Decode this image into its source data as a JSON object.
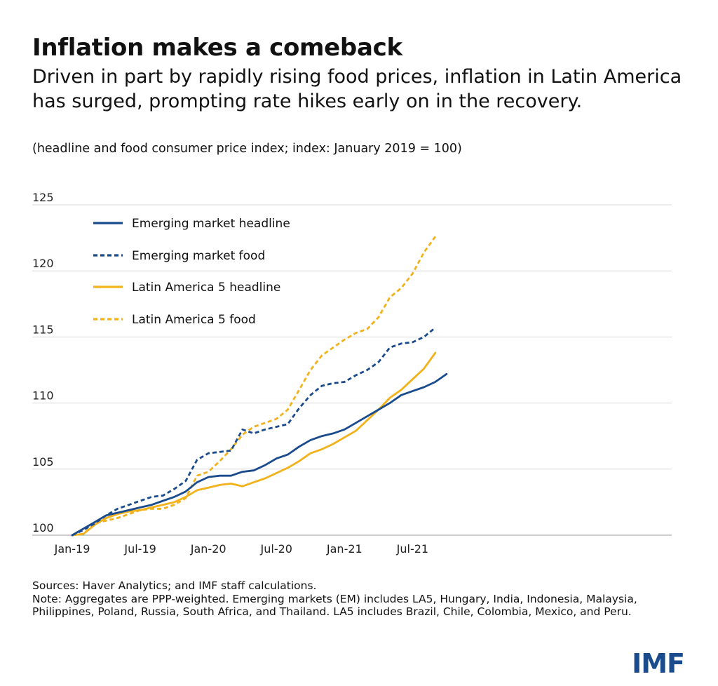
{
  "header": {
    "title": "Inflation makes a comeback",
    "subtitle": "Driven in part by rapidly rising food prices, inflation in Latin America has surged, prompting rate hikes early on in the recovery.",
    "units": "(headline and food consumer price index; index: January 2019 = 100)"
  },
  "chart_data": {
    "type": "line",
    "title": "Inflation makes a comeback",
    "ylim": [
      100,
      125
    ],
    "yticks": [
      100,
      105,
      110,
      115,
      120,
      125
    ],
    "xticks": [
      {
        "index": 0,
        "label": "Jan-19"
      },
      {
        "index": 6,
        "label": "Jul-19"
      },
      {
        "index": 12,
        "label": "Jan-20"
      },
      {
        "index": 18,
        "label": "Jul-20"
      },
      {
        "index": 24,
        "label": "Jan-21"
      },
      {
        "index": 30,
        "label": "Jul-21"
      }
    ],
    "grid": true,
    "legend_position": "top-left",
    "series": [
      {
        "name": "Emerging market headline",
        "color": "#1a4b8c",
        "dash": false,
        "values": [
          100.0,
          100.5,
          101.0,
          101.5,
          101.7,
          101.9,
          102.1,
          102.3,
          102.6,
          102.9,
          103.3,
          104.0,
          104.4,
          104.5,
          104.5,
          104.8,
          104.9,
          105.3,
          105.8,
          106.1,
          106.7,
          107.2,
          107.5,
          107.7,
          108.0,
          108.5,
          109.0,
          109.5,
          110.0,
          110.6,
          110.9,
          111.2,
          111.6,
          112.2
        ]
      },
      {
        "name": "Emerging market food",
        "color": "#1a4b8c",
        "dash": true,
        "values": [
          100.0,
          100.4,
          100.9,
          101.5,
          102.0,
          102.3,
          102.6,
          102.9,
          103.0,
          103.5,
          104.1,
          105.7,
          106.2,
          106.3,
          106.4,
          108.0,
          107.7,
          108.0,
          108.2,
          108.4,
          109.6,
          110.6,
          111.3,
          111.5,
          111.6,
          112.1,
          112.5,
          113.1,
          114.2,
          114.5,
          114.6,
          115.0,
          115.7
        ]
      },
      {
        "name": "Latin America 5 headline",
        "color": "#f2b21b",
        "dash": false,
        "values": [
          100.0,
          100.1,
          100.8,
          101.3,
          101.6,
          101.8,
          101.9,
          102.1,
          102.3,
          102.5,
          102.9,
          103.4,
          103.6,
          103.8,
          103.9,
          103.7,
          104.0,
          104.3,
          104.7,
          105.1,
          105.6,
          106.2,
          106.5,
          106.9,
          107.4,
          107.9,
          108.7,
          109.5,
          110.4,
          111.0,
          111.8,
          112.6,
          113.8
        ]
      },
      {
        "name": "Latin America 5 food",
        "color": "#f2b21b",
        "dash": true,
        "values": [
          100.0,
          100.1,
          100.9,
          101.1,
          101.3,
          101.6,
          101.9,
          102.0,
          102.0,
          102.3,
          102.8,
          104.5,
          104.8,
          105.6,
          106.5,
          107.6,
          108.2,
          108.5,
          108.8,
          109.5,
          111.0,
          112.5,
          113.6,
          114.2,
          114.8,
          115.3,
          115.6,
          116.5,
          118.0,
          118.7,
          119.8,
          121.4,
          122.6
        ]
      }
    ]
  },
  "footer": {
    "sources": "Sources: Haver Analytics; and IMF staff calculations.",
    "note": "Note: Aggregates are PPP-weighted. Emerging markets (EM) includes LA5, Hungary, India, Indonesia, Malaysia, Philippines, Poland, Russia, South Africa, and Thailand. LA5 includes Brazil, Chile, Colombia, Mexico, and Peru.",
    "logo": "IMF"
  }
}
